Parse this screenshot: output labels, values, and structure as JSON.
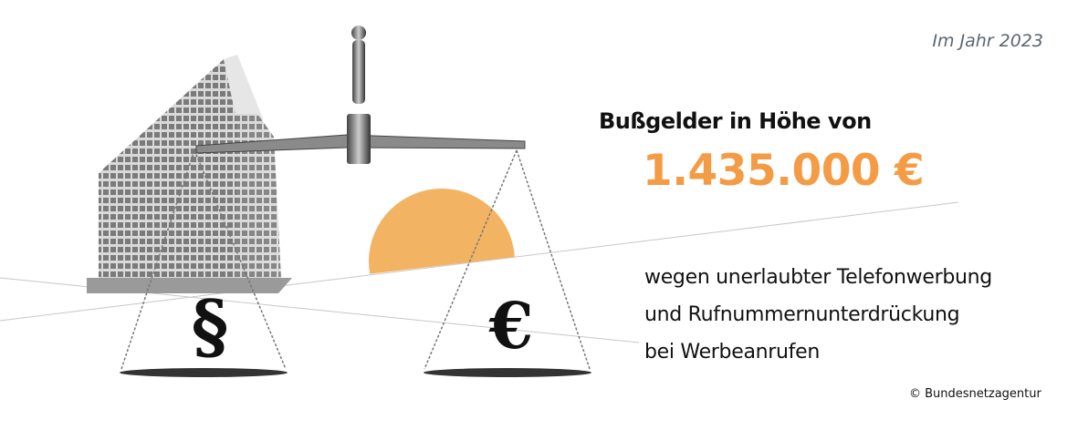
{
  "year_label": "Im Jahr 2023",
  "headline": "Bußgelder in Höhe von",
  "amount": "1.435.000 €",
  "description": [
    "wegen unerlaubter Telefonwerbung",
    "und Rufnummernunterdrückung",
    "bei Werbeanrufen"
  ],
  "copyright": "© Bundesnetzagentur",
  "illustration": {
    "left_pan_symbol": "§",
    "right_pan_symbol": "€"
  },
  "colors": {
    "accent": "#f39c45",
    "sun": "#f2b362",
    "text": "#111111",
    "year": "#5b6670"
  }
}
